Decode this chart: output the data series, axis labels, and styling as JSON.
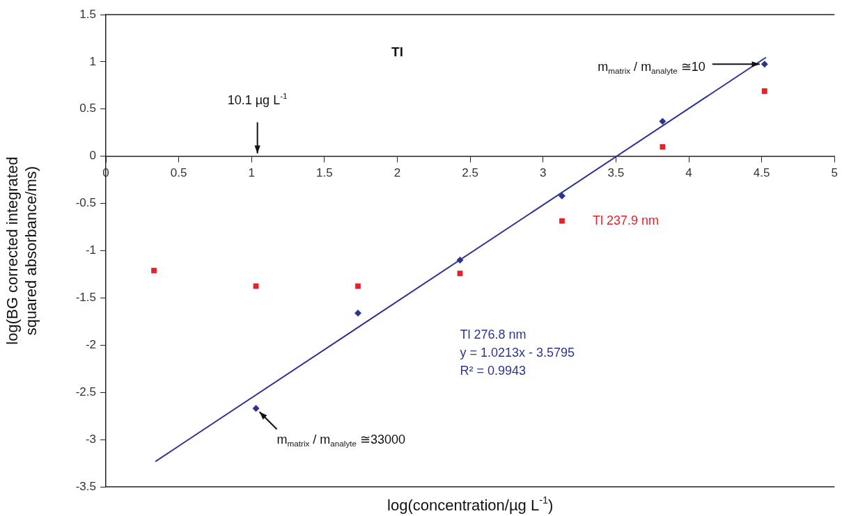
{
  "chart_data": {
    "type": "scatter",
    "title": "Tl",
    "xlabel": "log(concentration/µg L$^{-1}$)",
    "ylabel": "log(BG corrected integrated squared absorbance/ms)",
    "xlim": [
      0,
      5
    ],
    "xticks": [
      0,
      0.5,
      1,
      1.5,
      2,
      2.5,
      3,
      3.5,
      4,
      4.5,
      5
    ],
    "ylim": [
      -3.5,
      1.5
    ],
    "yticks": [
      -3.5,
      -3,
      -2.5,
      -2,
      -1.5,
      -1,
      -0.5,
      0,
      0.5,
      1,
      1.5
    ],
    "grid": false,
    "legend": false,
    "series": [
      {
        "name": "Tl 237.9 nm",
        "type": "scatter",
        "marker": "square",
        "color": "#e8202a",
        "x": [
          0.33,
          1.03,
          1.73,
          2.43,
          3.13,
          3.82,
          4.52
        ],
        "values": [
          -1.21,
          -1.375,
          -1.375,
          -1.24,
          -0.685,
          0.1,
          0.69
        ]
      },
      {
        "name": "Tl 276.8 nm",
        "type": "scatter",
        "marker": "diamond",
        "color": "#2b3590",
        "x": [
          1.03,
          1.73,
          2.43,
          3.13,
          3.82,
          4.52
        ],
        "values": [
          -2.67,
          -1.66,
          -1.1,
          -0.42,
          0.37,
          0.975
        ]
      },
      {
        "type": "line",
        "marker": "none",
        "line_style": "solid",
        "color": "#2e3192",
        "x": [
          0.34,
          4.53
        ],
        "values": [
          -3.232,
          1.047
        ]
      }
    ],
    "annotations": [
      "10.1 µg L$^{-1}$",
      {
        "text": "m$_{matrix}$ / m$_{analyte}$ ≅10",
        "x": 4.52,
        "y": 0.975
      },
      {
        "text": "m$_{matrix}$ / m$_{analyte}$ ≅33000",
        "x": 1.03,
        "y": -2.67
      },
      "y = 1.0213x - 3.5795",
      "R² = 0.9943"
    ]
  }
}
